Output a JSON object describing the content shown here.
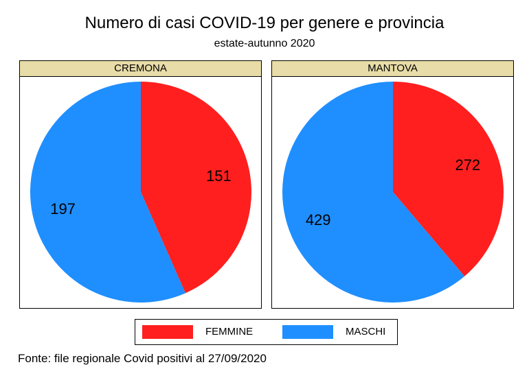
{
  "colors": {
    "femmine": "#ff1f1f",
    "maschi": "#1f8fff",
    "strip": "#e8dca8"
  },
  "chart_data": {
    "type": "pie",
    "title": "Numero di casi COVID-19 per genere e provincia",
    "subtitle": "estate-autunno 2020",
    "legend": [
      "FEMMINE",
      "MASCHI"
    ],
    "legend_placement": "bottom",
    "panels": [
      {
        "name": "CREMONA",
        "slices": [
          {
            "label": "FEMMINE",
            "value": 151
          },
          {
            "label": "MASCHI",
            "value": 197
          }
        ]
      },
      {
        "name": "MANTOVA",
        "slices": [
          {
            "label": "FEMMINE",
            "value": 272
          },
          {
            "label": "MASCHI",
            "value": 429
          }
        ]
      }
    ]
  },
  "source": "Fonte: file regionale Covid positivi al 27/09/2020"
}
